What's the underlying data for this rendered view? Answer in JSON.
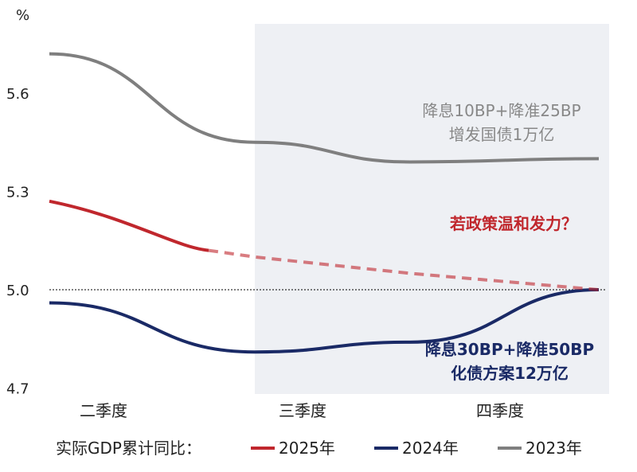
{
  "chart_data": {
    "type": "line",
    "ylabel": "%",
    "ylim": [
      4.7,
      5.75
    ],
    "yticks": [
      "5.6",
      "5.3",
      "5.0",
      "4.7"
    ],
    "ytick_values": [
      5.6,
      5.3,
      5.0,
      4.7
    ],
    "categories": [
      "二季度",
      "三季度",
      "四季度"
    ],
    "x": [
      0,
      1,
      2,
      3
    ],
    "series": [
      {
        "name": "2023年",
        "color": "#7f7f7f",
        "values": [
          5.72,
          5.45,
          5.39,
          5.4
        ]
      },
      {
        "name": "2024年",
        "color": "#1a2a66",
        "values": [
          4.96,
          4.81,
          4.84,
          5.0
        ]
      },
      {
        "name": "2025年",
        "color": "#c0272d",
        "values": [
          5.27,
          5.1,
          5.05,
          5.0
        ]
      }
    ],
    "annotations": {
      "a2023": [
        "降息10BP+降准25BP",
        "增发国债1万亿"
      ],
      "a2025": "若政策温和发力？",
      "a2024": [
        "降息30BP+降准50BP",
        "化债方案12万亿"
      ]
    },
    "legend_title": "实际GDP累计同比："
  }
}
